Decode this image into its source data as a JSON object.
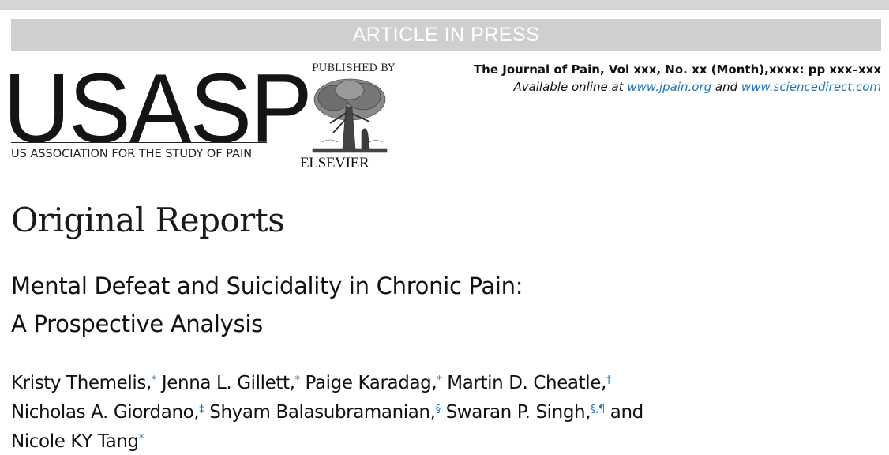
{
  "banner": "ARTICLE IN PRESS",
  "society": {
    "logo_text": "USASP",
    "full_name": "US ASSOCIATION FOR THE STUDY OF PAIN"
  },
  "publisher": {
    "published_by": "PUBLISHED BY",
    "name": "ELSEVIER"
  },
  "journal": {
    "citation": "The Journal of Pain, Vol xxx, No. xx (Month),xxxx: pp xxx–xxx",
    "online_prefix": "Available online at ",
    "link1": "www.jpain.org",
    "online_and": " and ",
    "link2": "www.sciencedirect.com"
  },
  "section": "Original Reports",
  "title": {
    "line1": "Mental Defeat and Suicidality in Chronic Pain:",
    "line2": "A Prospective Analysis"
  },
  "authors": [
    {
      "name": "Kristy Themelis,",
      "aff": "*"
    },
    {
      "name": "Jenna L. Gillett,",
      "aff": "*"
    },
    {
      "name": "Paige Karadag,",
      "aff": "*"
    },
    {
      "name": "Martin D. Cheatle,",
      "aff": "†"
    },
    {
      "name": "Nicholas A. Giordano,",
      "aff": "‡"
    },
    {
      "name": "Shyam Balasubramanian,",
      "aff": "§"
    },
    {
      "name": "Swaran P. Singh,",
      "aff": "§,¶"
    },
    {
      "name": "Nicole KY Tang",
      "aff": "*"
    }
  ],
  "authors_and": "and",
  "colors": {
    "banner_bg": "#cfcfcf",
    "link": "#2277bb"
  },
  "icons": {
    "tree": "elsevier-tree-icon"
  }
}
